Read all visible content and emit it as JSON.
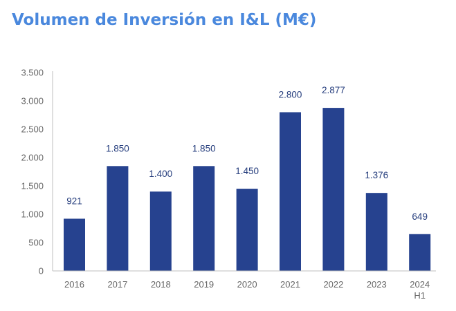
{
  "chart_data": {
    "type": "bar",
    "title": "Volumen de Inversión en I&L (M€)",
    "xlabel": "",
    "ylabel": "",
    "categories": [
      "2016",
      "2017",
      "2018",
      "2019",
      "2020",
      "2021",
      "2022",
      "2023",
      "2024\nH1"
    ],
    "values": [
      921,
      1850,
      1400,
      1850,
      1450,
      2800,
      2877,
      1376,
      649
    ],
    "value_labels": [
      "921",
      "1.850",
      "1.400",
      "1.850",
      "1.450",
      "2.800",
      "2.877",
      "1.376",
      "649"
    ],
    "ylim": [
      0,
      3500
    ],
    "yticks": [
      0,
      500,
      1000,
      1500,
      2000,
      2500,
      3000,
      3500
    ],
    "ytick_labels": [
      "0",
      "500",
      "1.000",
      "1.500",
      "2.000",
      "2.500",
      "3.000",
      "3.500"
    ],
    "grid": false,
    "legend": "none",
    "colors": {
      "bar": "#26428f",
      "title": "#4a88dd",
      "value_label": "#243c7c",
      "axis_text": "#666666",
      "axis_line": "#bfbfbf"
    }
  }
}
